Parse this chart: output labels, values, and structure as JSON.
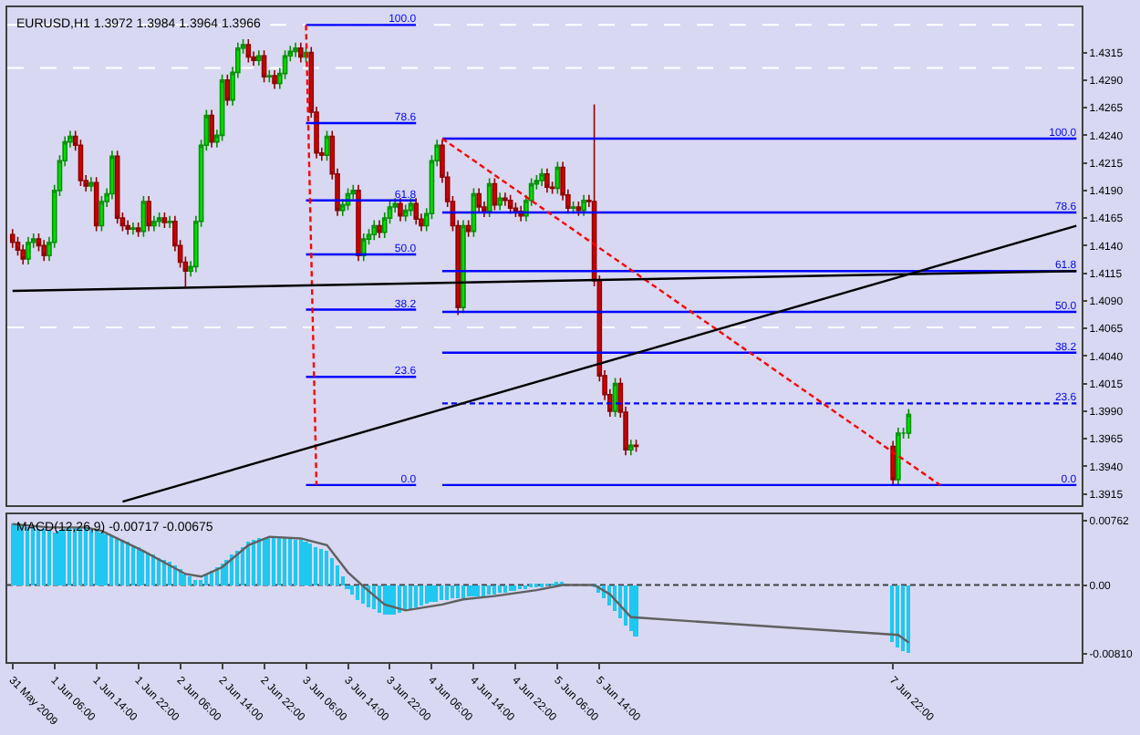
{
  "chart_data": [
    {
      "type": "candlestick",
      "title": "EURUSD,H1 1.3972 1.3984 1.3964 1.3966",
      "tick_labels": "y",
      "x": [
        "2009-05-31T22:00",
        "2009-05-31T23:00",
        "2009-06-01T00:00",
        "2009-06-01T01:00",
        "2009-06-01T02:00",
        "2009-06-01T03:00",
        "2009-06-01T04:00",
        "2009-06-01T05:00",
        "2009-06-01T06:00",
        "2009-06-01T07:00",
        "2009-06-01T08:00",
        "2009-06-01T09:00",
        "2009-06-01T10:00",
        "2009-06-01T11:00",
        "2009-06-01T12:00",
        "2009-06-01T13:00",
        "2009-06-01T14:00",
        "2009-06-01T15:00",
        "2009-06-01T16:00",
        "2009-06-01T17:00",
        "2009-06-01T18:00",
        "2009-06-01T19:00",
        "2009-06-01T20:00",
        "2009-06-01T21:00",
        "2009-06-01T22:00",
        "2009-06-01T23:00",
        "2009-06-02T00:00",
        "2009-06-02T01:00",
        "2009-06-02T02:00",
        "2009-06-02T03:00",
        "2009-06-02T04:00",
        "2009-06-02T05:00",
        "2009-06-02T06:00",
        "2009-06-02T07:00",
        "2009-06-02T08:00",
        "2009-06-02T09:00",
        "2009-06-02T10:00",
        "2009-06-02T11:00",
        "2009-06-02T12:00",
        "2009-06-02T13:00",
        "2009-06-02T14:00",
        "2009-06-02T15:00",
        "2009-06-02T16:00",
        "2009-06-02T17:00",
        "2009-06-02T18:00",
        "2009-06-02T19:00",
        "2009-06-02T20:00",
        "2009-06-02T21:00",
        "2009-06-02T22:00",
        "2009-06-02T23:00",
        "2009-06-03T00:00",
        "2009-06-03T01:00",
        "2009-06-03T02:00",
        "2009-06-03T03:00",
        "2009-06-03T04:00",
        "2009-06-03T05:00",
        "2009-06-03T06:00",
        "2009-06-03T07:00",
        "2009-06-03T08:00",
        "2009-06-03T09:00",
        "2009-06-03T10:00",
        "2009-06-03T11:00",
        "2009-06-03T12:00",
        "2009-06-03T13:00",
        "2009-06-03T14:00",
        "2009-06-03T15:00",
        "2009-06-03T16:00",
        "2009-06-03T17:00",
        "2009-06-03T18:00",
        "2009-06-03T19:00",
        "2009-06-03T20:00",
        "2009-06-03T21:00",
        "2009-06-03T22:00",
        "2009-06-03T23:00",
        "2009-06-04T00:00",
        "2009-06-04T01:00",
        "2009-06-04T02:00",
        "2009-06-04T03:00",
        "2009-06-04T04:00",
        "2009-06-04T05:00",
        "2009-06-04T06:00",
        "2009-06-04T07:00",
        "2009-06-04T08:00",
        "2009-06-04T09:00",
        "2009-06-04T10:00",
        "2009-06-04T11:00",
        "2009-06-04T12:00",
        "2009-06-04T13:00",
        "2009-06-04T14:00",
        "2009-06-04T15:00",
        "2009-06-04T16:00",
        "2009-06-04T17:00",
        "2009-06-04T18:00",
        "2009-06-04T19:00",
        "2009-06-04T20:00",
        "2009-06-04T21:00",
        "2009-06-04T22:00",
        "2009-06-04T23:00",
        "2009-06-05T00:00",
        "2009-06-05T01:00",
        "2009-06-05T02:00",
        "2009-06-05T03:00",
        "2009-06-05T04:00",
        "2009-06-05T05:00",
        "2009-06-05T06:00",
        "2009-06-05T07:00",
        "2009-06-05T08:00",
        "2009-06-05T09:00",
        "2009-06-05T10:00",
        "2009-06-05T11:00",
        "2009-06-05T12:00",
        "2009-06-05T13:00",
        "2009-06-05T14:00",
        "2009-06-05T15:00",
        "2009-06-05T16:00",
        "2009-06-05T17:00",
        "2009-06-05T18:00",
        "2009-06-05T19:00",
        "2009-06-05T20:00",
        "2009-06-05T21:00",
        "2009-06-07T22:00",
        "2009-06-07T23:00",
        "2009-06-08T00:00",
        "2009-06-08T01:00"
      ],
      "ohlc": [
        [
          1.415,
          1.4155,
          1.4138,
          1.4143
        ],
        [
          1.4143,
          1.4148,
          1.4131,
          1.4136
        ],
        [
          1.4136,
          1.4141,
          1.4123,
          1.4128
        ],
        [
          1.4128,
          1.4148,
          1.4123,
          1.4143
        ],
        [
          1.4143,
          1.4151,
          1.4138,
          1.4146
        ],
        [
          1.4146,
          1.4151,
          1.4135,
          1.414
        ],
        [
          1.414,
          1.4145,
          1.4126,
          1.4131
        ],
        [
          1.4131,
          1.4148,
          1.4126,
          1.4143
        ],
        [
          1.4143,
          1.4195,
          1.4138,
          1.419
        ],
        [
          1.419,
          1.4222,
          1.4185,
          1.4217
        ],
        [
          1.4217,
          1.4239,
          1.4212,
          1.4234
        ],
        [
          1.4234,
          1.4244,
          1.4229,
          1.4239
        ],
        [
          1.4239,
          1.4244,
          1.4226,
          1.4231
        ],
        [
          1.4231,
          1.4236,
          1.4194,
          1.4199
        ],
        [
          1.4199,
          1.4204,
          1.4189,
          1.4194
        ],
        [
          1.4194,
          1.4202,
          1.4189,
          1.4197
        ],
        [
          1.4197,
          1.4202,
          1.4153,
          1.4158
        ],
        [
          1.4158,
          1.4185,
          1.4153,
          1.418
        ],
        [
          1.418,
          1.4192,
          1.4175,
          1.4187
        ],
        [
          1.4187,
          1.4226,
          1.4182,
          1.4221
        ],
        [
          1.4221,
          1.4226,
          1.416,
          1.4165
        ],
        [
          1.4165,
          1.417,
          1.4153,
          1.4158
        ],
        [
          1.4158,
          1.4163,
          1.415,
          1.4155
        ],
        [
          1.4155,
          1.4161,
          1.415,
          1.4156
        ],
        [
          1.4156,
          1.4161,
          1.4148,
          1.4153
        ],
        [
          1.4153,
          1.4185,
          1.4148,
          1.418
        ],
        [
          1.418,
          1.4185,
          1.4153,
          1.4158
        ],
        [
          1.4158,
          1.4167,
          1.4153,
          1.4162
        ],
        [
          1.4162,
          1.417,
          1.4157,
          1.4165
        ],
        [
          1.4165,
          1.417,
          1.4156,
          1.4161
        ],
        [
          1.4161,
          1.4167,
          1.4156,
          1.4162
        ],
        [
          1.4162,
          1.4167,
          1.4135,
          1.414
        ],
        [
          1.414,
          1.4145,
          1.412,
          1.4125
        ],
        [
          1.4125,
          1.413,
          1.4102,
          1.4117
        ],
        [
          1.4117,
          1.4126,
          1.4112,
          1.4121
        ],
        [
          1.4121,
          1.4167,
          1.4116,
          1.4162
        ],
        [
          1.4162,
          1.4236,
          1.4157,
          1.4231
        ],
        [
          1.4231,
          1.4263,
          1.4226,
          1.4258
        ],
        [
          1.4258,
          1.4263,
          1.4229,
          1.4234
        ],
        [
          1.4234,
          1.4245,
          1.4229,
          1.424
        ],
        [
          1.424,
          1.4295,
          1.4235,
          1.429
        ],
        [
          1.429,
          1.4295,
          1.4267,
          1.4272
        ],
        [
          1.4272,
          1.4302,
          1.4267,
          1.4297
        ],
        [
          1.4297,
          1.4324,
          1.4292,
          1.4319
        ],
        [
          1.4319,
          1.4327,
          1.4314,
          1.4322
        ],
        [
          1.4322,
          1.4327,
          1.4306,
          1.4311
        ],
        [
          1.4311,
          1.4316,
          1.4303,
          1.4308
        ],
        [
          1.4308,
          1.4317,
          1.4303,
          1.4312
        ],
        [
          1.4312,
          1.4317,
          1.4288,
          1.4293
        ],
        [
          1.4293,
          1.4299,
          1.4288,
          1.4294
        ],
        [
          1.4294,
          1.4299,
          1.4282,
          1.4287
        ],
        [
          1.4287,
          1.4301,
          1.4282,
          1.4296
        ],
        [
          1.4296,
          1.4317,
          1.4291,
          1.4312
        ],
        [
          1.4312,
          1.4321,
          1.4307,
          1.4316
        ],
        [
          1.4316,
          1.4324,
          1.4311,
          1.4319
        ],
        [
          1.4319,
          1.4324,
          1.4306,
          1.4311
        ],
        [
          1.4311,
          1.432,
          1.4306,
          1.4315
        ],
        [
          1.4315,
          1.432,
          1.4256,
          1.4261
        ],
        [
          1.4261,
          1.4266,
          1.4219,
          1.4224
        ],
        [
          1.4224,
          1.4229,
          1.4217,
          1.4222
        ],
        [
          1.4222,
          1.4244,
          1.4217,
          1.4239
        ],
        [
          1.4239,
          1.4244,
          1.42,
          1.4205
        ],
        [
          1.4205,
          1.421,
          1.4167,
          1.4172
        ],
        [
          1.4172,
          1.4182,
          1.4167,
          1.4177
        ],
        [
          1.4177,
          1.4192,
          1.4172,
          1.4187
        ],
        [
          1.4187,
          1.4195,
          1.4182,
          1.419
        ],
        [
          1.419,
          1.4195,
          1.4126,
          1.4131
        ],
        [
          1.4131,
          1.4151,
          1.4126,
          1.4146
        ],
        [
          1.4146,
          1.4155,
          1.4141,
          1.415
        ],
        [
          1.415,
          1.4163,
          1.4145,
          1.4158
        ],
        [
          1.4158,
          1.4163,
          1.4147,
          1.4152
        ],
        [
          1.4152,
          1.417,
          1.4147,
          1.4165
        ],
        [
          1.4165,
          1.418,
          1.416,
          1.4175
        ],
        [
          1.4175,
          1.4183,
          1.417,
          1.4178
        ],
        [
          1.4178,
          1.4183,
          1.4162,
          1.4167
        ],
        [
          1.4167,
          1.4177,
          1.4162,
          1.4172
        ],
        [
          1.4172,
          1.4183,
          1.4167,
          1.4178
        ],
        [
          1.4178,
          1.4183,
          1.4159,
          1.4164
        ],
        [
          1.4164,
          1.4169,
          1.4153,
          1.4158
        ],
        [
          1.4158,
          1.4174,
          1.4153,
          1.4169
        ],
        [
          1.4169,
          1.4222,
          1.4164,
          1.4217
        ],
        [
          1.4217,
          1.4236,
          1.4212,
          1.4231
        ],
        [
          1.4231,
          1.4236,
          1.4197,
          1.4202
        ],
        [
          1.4202,
          1.4207,
          1.4175,
          1.418
        ],
        [
          1.418,
          1.4185,
          1.4153,
          1.4158
        ],
        [
          1.4158,
          1.4163,
          1.4077,
          1.4084
        ],
        [
          1.4084,
          1.4163,
          1.4079,
          1.4158
        ],
        [
          1.4158,
          1.4163,
          1.4148,
          1.4153
        ],
        [
          1.4153,
          1.4192,
          1.4148,
          1.4187
        ],
        [
          1.4187,
          1.4192,
          1.417,
          1.4175
        ],
        [
          1.4175,
          1.418,
          1.4166,
          1.4171
        ],
        [
          1.4171,
          1.4201,
          1.4166,
          1.4196
        ],
        [
          1.4196,
          1.4201,
          1.4172,
          1.4177
        ],
        [
          1.4177,
          1.4188,
          1.4172,
          1.4183
        ],
        [
          1.4183,
          1.4188,
          1.4176,
          1.4181
        ],
        [
          1.4181,
          1.4186,
          1.4169,
          1.4174
        ],
        [
          1.4174,
          1.4179,
          1.4166,
          1.4171
        ],
        [
          1.4171,
          1.4176,
          1.4162,
          1.4167
        ],
        [
          1.4167,
          1.4186,
          1.4162,
          1.4181
        ],
        [
          1.4181,
          1.4201,
          1.4176,
          1.4196
        ],
        [
          1.4196,
          1.4204,
          1.4191,
          1.4199
        ],
        [
          1.4199,
          1.421,
          1.4194,
          1.4205
        ],
        [
          1.4205,
          1.421,
          1.4188,
          1.4193
        ],
        [
          1.4193,
          1.4198,
          1.4187,
          1.4192
        ],
        [
          1.4192,
          1.4216,
          1.4187,
          1.4211
        ],
        [
          1.4211,
          1.4216,
          1.4181,
          1.4186
        ],
        [
          1.4186,
          1.4191,
          1.4169,
          1.4174
        ],
        [
          1.4174,
          1.418,
          1.4169,
          1.4175
        ],
        [
          1.4175,
          1.418,
          1.4167,
          1.4172
        ],
        [
          1.4172,
          1.4186,
          1.4167,
          1.4181
        ],
        [
          1.4181,
          1.4186,
          1.4175,
          1.418
        ],
        [
          1.418,
          1.4268,
          1.4103,
          1.4108
        ],
        [
          1.4108,
          1.4113,
          1.4017,
          1.4022
        ],
        [
          1.4022,
          1.4027,
          1.4,
          1.4005
        ],
        [
          1.4005,
          1.401,
          1.3985,
          1.399
        ],
        [
          1.399,
          1.402,
          1.3985,
          1.4015
        ],
        [
          1.4015,
          1.402,
          1.3984,
          1.3989
        ],
        [
          1.3989,
          1.3994,
          1.395,
          1.3955
        ],
        [
          1.3955,
          1.3964,
          1.395,
          1.3959
        ],
        [
          1.3959,
          1.3964,
          1.3953,
          1.3958
        ],
        [
          1.3958,
          1.3963,
          1.3923,
          1.3928
        ],
        [
          1.3928,
          1.3975,
          1.3923,
          1.397
        ],
        [
          1.397,
          1.3975,
          1.3965,
          1.397
        ],
        [
          1.397,
          1.3992,
          1.3965,
          1.3987
        ]
      ],
      "xlim": [
        "2009-05-31T21:00",
        "2009-06-09T10:00"
      ],
      "ylim": [
        1.3905,
        1.4356
      ],
      "yticks": [
        {
          "value": 1.4315,
          "label": "1.4315"
        },
        {
          "value": 1.429,
          "label": "1.4290"
        },
        {
          "value": 1.4265,
          "label": "1.4265"
        },
        {
          "value": 1.424,
          "label": "1.4240"
        },
        {
          "value": 1.4215,
          "label": "1.4215"
        },
        {
          "value": 1.419,
          "label": "1.4190"
        },
        {
          "value": 1.4165,
          "label": "1.4165"
        },
        {
          "value": 1.414,
          "label": "1.4140"
        },
        {
          "value": 1.4115,
          "label": "1.4115"
        },
        {
          "value": 1.409,
          "label": "1.4090"
        },
        {
          "value": 1.4065,
          "label": "1.4065"
        },
        {
          "value": 1.404,
          "label": "1.4040"
        },
        {
          "value": 1.4015,
          "label": "1.4015"
        },
        {
          "value": 1.399,
          "label": "1.3990"
        },
        {
          "value": 1.3965,
          "label": "1.3965"
        },
        {
          "value": 1.394,
          "label": "1.3940"
        },
        {
          "value": 1.3915,
          "label": "1.3915"
        }
      ],
      "ref_lines": [
        {
          "axis": "y",
          "value": 1.434,
          "color": "#ffffff",
          "line_style": "dashed"
        },
        {
          "axis": "y",
          "value": 1.4301,
          "color": "#ffffff",
          "line_style": "dashed"
        },
        {
          "axis": "y",
          "value": 1.4066,
          "color": "#ffffff",
          "line_style": "dashed"
        }
      ],
      "series": [
        {
          "type": "line",
          "name": "100.0",
          "x": [
            "2009-06-03T06:00",
            "2009-06-04T03:00"
          ],
          "values": [
            1.434,
            1.434
          ],
          "color": "#0000ff"
        },
        {
          "type": "line",
          "name": "78.6",
          "x": [
            "2009-06-03T06:00",
            "2009-06-04T03:00"
          ],
          "values": [
            1.4251,
            1.4251
          ],
          "color": "#0000ff"
        },
        {
          "type": "line",
          "name": "61.8",
          "x": [
            "2009-06-03T06:00",
            "2009-06-04T03:00"
          ],
          "values": [
            1.4181,
            1.4181
          ],
          "color": "#0000ff"
        },
        {
          "type": "line",
          "name": "50.0",
          "x": [
            "2009-06-03T06:00",
            "2009-06-04T03:00"
          ],
          "values": [
            1.4132,
            1.4132
          ],
          "color": "#0000ff"
        },
        {
          "type": "line",
          "name": "38.2",
          "x": [
            "2009-06-03T06:00",
            "2009-06-04T03:00"
          ],
          "values": [
            1.4082,
            1.4082
          ],
          "color": "#0000ff"
        },
        {
          "type": "line",
          "name": "23.6",
          "x": [
            "2009-06-03T06:00",
            "2009-06-04T03:00"
          ],
          "values": [
            1.4021,
            1.4021
          ],
          "color": "#0000ff"
        },
        {
          "type": "line",
          "name": "0.0",
          "x": [
            "2009-06-03T06:00",
            "2009-06-04T03:00"
          ],
          "values": [
            1.3923,
            1.3923
          ],
          "color": "#0000ff"
        },
        {
          "type": "line",
          "name": "100.0",
          "x": [
            "2009-06-04T08:00",
            "2009-06-09T09:00"
          ],
          "values": [
            1.4237,
            1.4237
          ],
          "color": "#0000ff"
        },
        {
          "type": "line",
          "name": "78.6",
          "x": [
            "2009-06-04T08:00",
            "2009-06-09T09:00"
          ],
          "values": [
            1.417,
            1.417
          ],
          "color": "#0000ff"
        },
        {
          "type": "line",
          "name": "61.8",
          "x": [
            "2009-06-04T08:00",
            "2009-06-09T09:00"
          ],
          "values": [
            1.4117,
            1.4117
          ],
          "color": "#0000ff"
        },
        {
          "type": "line",
          "name": "50.0",
          "x": [
            "2009-06-04T08:00",
            "2009-06-09T09:00"
          ],
          "values": [
            1.408,
            1.408
          ],
          "color": "#0000ff"
        },
        {
          "type": "line",
          "name": "38.2",
          "x": [
            "2009-06-04T08:00",
            "2009-06-09T09:00"
          ],
          "values": [
            1.4043,
            1.4043
          ],
          "color": "#0000ff"
        },
        {
          "type": "line",
          "name": "23.6",
          "x": [
            "2009-06-04T08:00",
            "2009-06-09T09:00"
          ],
          "values": [
            1.3997,
            1.3997
          ],
          "color": "#0000ff",
          "line_style": "dotted"
        },
        {
          "type": "line",
          "name": "0.0",
          "x": [
            "2009-06-04T08:00",
            "2009-06-09T09:00"
          ],
          "values": [
            1.3923,
            1.3923
          ],
          "color": "#0000ff"
        },
        {
          "type": "line",
          "x": [
            "2009-06-03T06:00",
            "2009-06-03T08:00"
          ],
          "values": [
            1.434,
            1.3923
          ],
          "color": "#ff0000",
          "line_style": "dotted"
        },
        {
          "type": "line",
          "x": [
            "2009-06-04T08:00",
            "2009-06-08T07:00"
          ],
          "values": [
            1.4237,
            1.3923
          ],
          "color": "#ff0000",
          "line_style": "dotted"
        },
        {
          "type": "line",
          "x": [
            "2009-05-31T22:00",
            "2009-06-09T09:00"
          ],
          "values": [
            1.4099,
            1.4117
          ],
          "color": "#000000"
        },
        {
          "type": "line",
          "x": [
            "2009-06-01T19:00",
            "2009-06-09T09:00"
          ],
          "values": [
            1.3908,
            1.4158
          ],
          "color": "#000000"
        }
      ]
    },
    {
      "type": "bar",
      "title": "MACD(12,26,9) -0.00717 -0.00675",
      "x": [
        "2009-05-31T22:00",
        "2009-05-31T23:00",
        "2009-06-01T00:00",
        "2009-06-01T01:00",
        "2009-06-01T02:00",
        "2009-06-01T03:00",
        "2009-06-01T04:00",
        "2009-06-01T05:00",
        "2009-06-01T06:00",
        "2009-06-01T07:00",
        "2009-06-01T08:00",
        "2009-06-01T09:00",
        "2009-06-01T10:00",
        "2009-06-01T11:00",
        "2009-06-01T12:00",
        "2009-06-01T13:00",
        "2009-06-01T14:00",
        "2009-06-01T15:00",
        "2009-06-01T16:00",
        "2009-06-01T17:00",
        "2009-06-01T18:00",
        "2009-06-01T19:00",
        "2009-06-01T20:00",
        "2009-06-01T21:00",
        "2009-06-01T22:00",
        "2009-06-01T23:00",
        "2009-06-02T00:00",
        "2009-06-02T01:00",
        "2009-06-02T02:00",
        "2009-06-02T03:00",
        "2009-06-02T04:00",
        "2009-06-02T05:00",
        "2009-06-02T06:00",
        "2009-06-02T07:00",
        "2009-06-02T08:00",
        "2009-06-02T09:00",
        "2009-06-02T10:00",
        "2009-06-02T11:00",
        "2009-06-02T12:00",
        "2009-06-02T13:00",
        "2009-06-02T14:00",
        "2009-06-02T15:00",
        "2009-06-02T16:00",
        "2009-06-02T17:00",
        "2009-06-02T18:00",
        "2009-06-02T19:00",
        "2009-06-02T20:00",
        "2009-06-02T21:00",
        "2009-06-02T22:00",
        "2009-06-02T23:00",
        "2009-06-03T00:00",
        "2009-06-03T01:00",
        "2009-06-03T02:00",
        "2009-06-03T03:00",
        "2009-06-03T04:00",
        "2009-06-03T05:00",
        "2009-06-03T06:00",
        "2009-06-03T07:00",
        "2009-06-03T08:00",
        "2009-06-03T09:00",
        "2009-06-03T10:00",
        "2009-06-03T11:00",
        "2009-06-03T12:00",
        "2009-06-03T13:00",
        "2009-06-03T14:00",
        "2009-06-03T15:00",
        "2009-06-03T16:00",
        "2009-06-03T17:00",
        "2009-06-03T18:00",
        "2009-06-03T19:00",
        "2009-06-03T20:00",
        "2009-06-03T21:00",
        "2009-06-03T22:00",
        "2009-06-03T23:00",
        "2009-06-04T00:00",
        "2009-06-04T01:00",
        "2009-06-04T02:00",
        "2009-06-04T03:00",
        "2009-06-04T04:00",
        "2009-06-04T05:00",
        "2009-06-04T06:00",
        "2009-06-04T07:00",
        "2009-06-04T08:00",
        "2009-06-04T09:00",
        "2009-06-04T10:00",
        "2009-06-04T11:00",
        "2009-06-04T12:00",
        "2009-06-04T13:00",
        "2009-06-04T14:00",
        "2009-06-04T15:00",
        "2009-06-04T16:00",
        "2009-06-04T17:00",
        "2009-06-04T18:00",
        "2009-06-04T19:00",
        "2009-06-04T20:00",
        "2009-06-04T21:00",
        "2009-06-04T22:00",
        "2009-06-04T23:00",
        "2009-06-05T00:00",
        "2009-06-05T01:00",
        "2009-06-05T02:00",
        "2009-06-05T03:00",
        "2009-06-05T04:00",
        "2009-06-05T05:00",
        "2009-06-05T06:00",
        "2009-06-05T07:00",
        "2009-06-05T08:00",
        "2009-06-05T09:00",
        "2009-06-05T10:00",
        "2009-06-05T11:00",
        "2009-06-05T12:00",
        "2009-06-05T13:00",
        "2009-06-05T14:00",
        "2009-06-05T15:00",
        "2009-06-05T16:00",
        "2009-06-05T17:00",
        "2009-06-05T18:00",
        "2009-06-05T19:00",
        "2009-06-05T20:00",
        "2009-06-05T21:00",
        "2009-06-07T22:00",
        "2009-06-07T23:00",
        "2009-06-08T00:00",
        "2009-06-08T01:00"
      ],
      "xlim": [
        "2009-05-31T21:00",
        "2009-06-09T10:00"
      ],
      "xticks": [
        {
          "value": "2009-05-31T22:00",
          "label": "31 May 2009"
        },
        {
          "value": "2009-06-01T06:00",
          "label": "1 Jun 06:00"
        },
        {
          "value": "2009-06-01T14:00",
          "label": "1 Jun 14:00"
        },
        {
          "value": "2009-06-01T22:00",
          "label": "1 Jun 22:00"
        },
        {
          "value": "2009-06-02T06:00",
          "label": "2 Jun 06:00"
        },
        {
          "value": "2009-06-02T14:00",
          "label": "2 Jun 14:00"
        },
        {
          "value": "2009-06-02T22:00",
          "label": "2 Jun 22:00"
        },
        {
          "value": "2009-06-03T06:00",
          "label": "3 Jun 06:00"
        },
        {
          "value": "2009-06-03T14:00",
          "label": "3 Jun 14:00"
        },
        {
          "value": "2009-06-03T22:00",
          "label": "3 Jun 22:00"
        },
        {
          "value": "2009-06-04T06:00",
          "label": "4 Jun 06:00"
        },
        {
          "value": "2009-06-04T14:00",
          "label": "4 Jun 14:00"
        },
        {
          "value": "2009-06-04T22:00",
          "label": "4 Jun 22:00"
        },
        {
          "value": "2009-06-05T06:00",
          "label": "5 Jun 06:00"
        },
        {
          "value": "2009-06-05T14:00",
          "label": "5 Jun 14:00"
        },
        {
          "value": "2009-06-07T22:00",
          "label": "7 Jun 22:00"
        }
      ],
      "ylim": [
        -0.0091,
        0.0083
      ],
      "yticks": [
        {
          "value": 0.00762,
          "label": "0.00762"
        },
        {
          "value": 0,
          "label": "0.00"
        },
        {
          "value": -0.0081,
          "label": "-0.00810"
        }
      ],
      "ref_lines": [
        {
          "axis": "y",
          "value": 0,
          "color": "#404040",
          "line_style": "dotted"
        }
      ],
      "series": [
        {
          "type": "bar",
          "color": "#1ec8f0",
          "values": [
            0.0072,
            0.0071,
            0.007,
            0.0069,
            0.0068,
            0.0066,
            0.0065,
            0.0063,
            0.0062,
            0.0064,
            0.0066,
            0.0068,
            0.0069,
            0.0068,
            0.0067,
            0.0066,
            0.0064,
            0.0062,
            0.006,
            0.0058,
            0.0056,
            0.0053,
            0.005,
            0.0047,
            0.0044,
            0.0041,
            0.0038,
            0.0035,
            0.0032,
            0.0029,
            0.0026,
            0.0022,
            0.0018,
            0.0013,
            0.0009,
            0.0006,
            0.0006,
            0.0011,
            0.0016,
            0.0021,
            0.0025,
            0.003,
            0.0035,
            0.004,
            0.0045,
            0.005,
            0.0053,
            0.0055,
            0.0056,
            0.0056,
            0.0056,
            0.0056,
            0.0055,
            0.0054,
            0.0053,
            0.0052,
            0.0051,
            0.0049,
            0.0045,
            0.0042,
            0.0039,
            0.0032,
            0.0022,
            0.001,
            -0.0006,
            -0.0012,
            -0.0018,
            -0.0022,
            -0.0026,
            -0.003,
            -0.0033,
            -0.0036,
            -0.0036,
            -0.0035,
            -0.0033,
            -0.0031,
            -0.0029,
            -0.0027,
            -0.0025,
            -0.0023,
            -0.0021,
            -0.002,
            -0.0019,
            -0.0018,
            -0.0017,
            -0.0016,
            -0.0016,
            -0.0015,
            -0.0014,
            -0.0013,
            -0.0013,
            -0.0012,
            -0.0011,
            -0.001,
            -0.0009,
            -0.0008,
            -0.0007,
            -0.0006,
            -0.0005,
            -0.0004,
            -0.0003,
            -0.0002,
            -0.0001,
            0.0001,
            0.0002,
            0.0002,
            null,
            null,
            null,
            null,
            0.0,
            -0.0002,
            -0.001,
            -0.0016,
            -0.0025,
            -0.0032,
            -0.004,
            -0.0048,
            -0.0055,
            -0.0062,
            -0.0068,
            -0.0074,
            -0.0078,
            -0.008
          ]
        },
        {
          "type": "line",
          "color": "#606060",
          "x": [
            "2009-05-31T22:00",
            "2009-06-01T05:00",
            "2009-06-01T12:00",
            "2009-06-01T15:00",
            "2009-06-01T23:00",
            "2009-06-02T07:00",
            "2009-06-02T10:00",
            "2009-06-02T14:00",
            "2009-06-02T19:00",
            "2009-06-02T23:00",
            "2009-06-03T05:00",
            "2009-06-03T10:00",
            "2009-06-03T14:00",
            "2009-06-03T17:00",
            "2009-06-03T21:00",
            "2009-06-04T01:00",
            "2009-06-04T08:00",
            "2009-06-04T12:00",
            "2009-06-04T18:00",
            "2009-06-05T02:00",
            "2009-06-05T07:00",
            "2009-06-05T13:00",
            "2009-06-05T16:00",
            "2009-06-05T20:00",
            "2009-06-07T23:00",
            "2009-06-08T01:00"
          ],
          "values": [
            0.0072,
            0.0068,
            0.0068,
            0.0064,
            0.004,
            0.0013,
            0.001,
            0.0021,
            0.0047,
            0.0057,
            0.0055,
            0.0047,
            0.0015,
            -0.0002,
            -0.0023,
            -0.003,
            -0.0023,
            -0.0017,
            -0.0013,
            -0.0006,
            0.0,
            0.0,
            -0.0011,
            -0.0038,
            -0.0059,
            -0.0068
          ]
        }
      ]
    }
  ]
}
